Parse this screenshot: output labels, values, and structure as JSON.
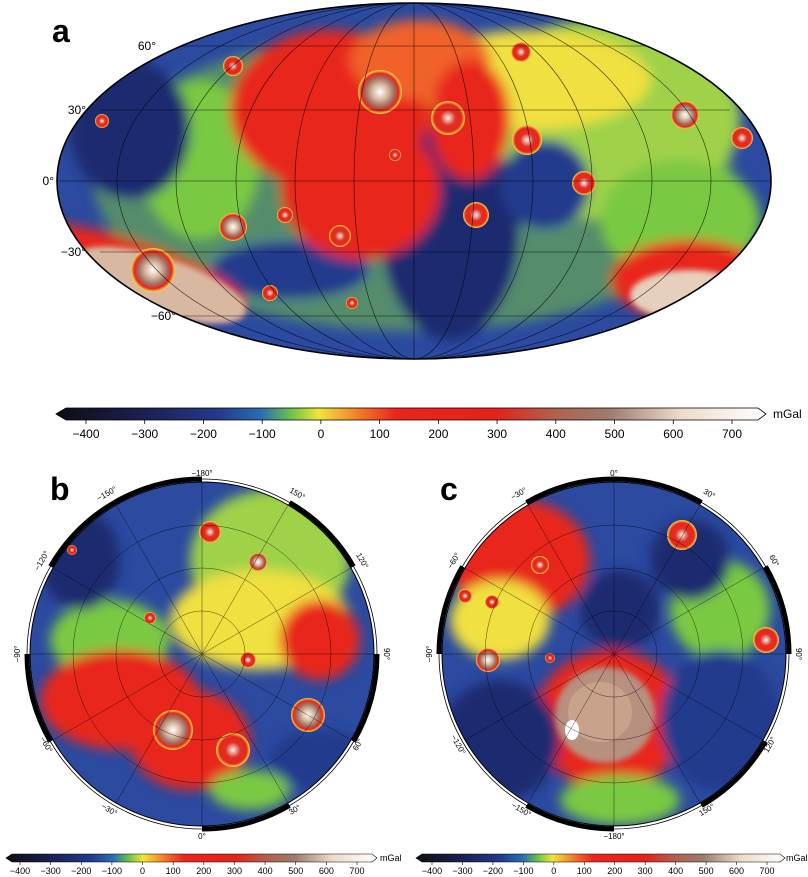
{
  "panels": {
    "a": {
      "label": "a",
      "lat_labels": [
        "60°",
        "30°",
        "0°",
        "−30°",
        "−60°"
      ]
    },
    "b": {
      "label": "b",
      "lon_labels": {
        "top": "−180°",
        "bottom": "0°",
        "left": "−90°",
        "right": "90°",
        "m150": "−150°",
        "m120": "−120°",
        "m60": "−60°",
        "m30": "−30°",
        "p150": "150°",
        "p120": "120°",
        "p60": "60°",
        "p30": "30°"
      }
    },
    "c": {
      "label": "c",
      "lon_labels": {
        "top": "0°",
        "bottom": "−180°",
        "left": "−90°",
        "right": "90°",
        "m30": "−30°",
        "m60": "−60°",
        "m120": "−120°",
        "m150": "−150°",
        "p30": "30°",
        "p60": "60°",
        "p120": "120°",
        "p150": "150°"
      }
    }
  },
  "colorbar": {
    "unit": "mGal",
    "ticks": [
      "−400",
      "−300",
      "−200",
      "−100",
      "0",
      "100",
      "200",
      "300",
      "400",
      "500",
      "600",
      "700"
    ],
    "colors": {
      "deep": "#1a1a2e",
      "navy": "#1b2a6b",
      "blue": "#2a52a8",
      "green": "#7ac943",
      "yellow": "#f5e63a",
      "orange": "#f59a2a",
      "red": "#e8251f",
      "brown": "#9a6a55",
      "tan": "#e3cdb8",
      "white": "#ffffff"
    }
  }
}
